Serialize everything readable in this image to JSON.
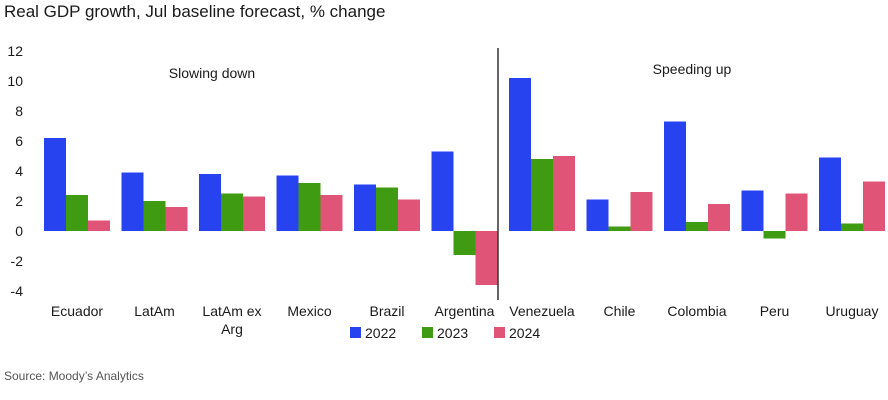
{
  "title": "Real GDP growth, Jul baseline forecast, % change",
  "source": "Source: Moody’s Analytics",
  "colors": {
    "2022": "#2743f0",
    "2023": "#3f9b12",
    "2024": "#e05577",
    "axis": "#333333"
  },
  "chart_data": {
    "type": "bar",
    "title": "Real GDP growth, Jul baseline forecast, % change",
    "xlabel": "",
    "ylabel": "",
    "ylim": [
      -4,
      12
    ],
    "yticks": [
      12,
      10,
      8,
      6,
      4,
      2,
      0,
      -2,
      -4
    ],
    "grid": false,
    "legend": "bottom",
    "panels": [
      "Slowing down",
      "Speeding up"
    ],
    "categories": [
      [
        "Ecuador"
      ],
      [
        "LatAm"
      ],
      [
        "LatAm ex",
        "Arg"
      ],
      [
        "Mexico"
      ],
      [
        "Brazil"
      ],
      [
        "Argentina"
      ],
      [
        "Venezuela"
      ],
      [
        "Chile"
      ],
      [
        "Colombia"
      ],
      [
        "Peru"
      ],
      [
        "Uruguay"
      ]
    ],
    "series": [
      {
        "name": "2022",
        "values": [
          6.2,
          3.9,
          3.8,
          3.7,
          3.1,
          5.3,
          10.2,
          2.1,
          7.3,
          2.7,
          4.9
        ]
      },
      {
        "name": "2023",
        "values": [
          2.4,
          2.0,
          2.5,
          3.2,
          2.9,
          -1.6,
          4.8,
          0.3,
          0.6,
          -0.5,
          0.5
        ]
      },
      {
        "name": "2024",
        "values": [
          0.7,
          1.6,
          2.3,
          2.4,
          2.1,
          -3.6,
          5.0,
          2.6,
          1.8,
          2.5,
          3.3
        ]
      }
    ]
  }
}
